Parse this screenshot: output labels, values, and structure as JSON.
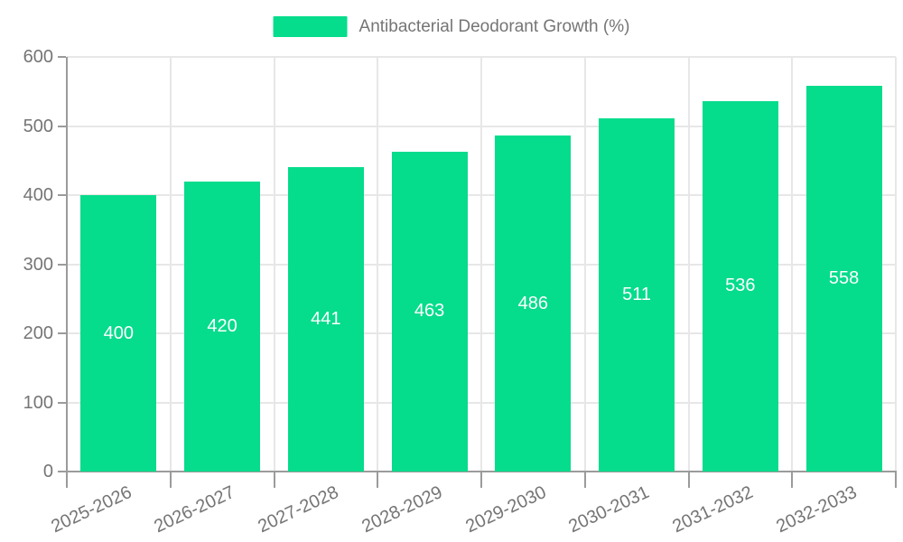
{
  "legend": {
    "label": "Antibacterial Deodorant Growth (%)"
  },
  "chart_data": {
    "type": "bar",
    "title": "Antibacterial Deodorant Growth (%)",
    "categories": [
      "2025-2026",
      "2026-2027",
      "2027-2028",
      "2028-2029",
      "2029-2030",
      "2030-2031",
      "2031-2032",
      "2032-2033"
    ],
    "values": [
      400,
      420,
      441,
      463,
      486,
      511,
      536,
      558
    ],
    "xlabel": "",
    "ylabel": "",
    "ylim": [
      0,
      600
    ],
    "ytick_step": 100,
    "ytick_labels": [
      "0",
      "100",
      "200",
      "300",
      "400",
      "500",
      "600"
    ],
    "grid": true,
    "legend_position": "top-center",
    "value_labels": "inside-center",
    "colors": {
      "bar": "#05dc8c",
      "bar_label": "#ffffff",
      "axis": "#9b9b9b",
      "grid": "#e7e7e7",
      "text": "#757575",
      "background": "#ffffff"
    }
  }
}
